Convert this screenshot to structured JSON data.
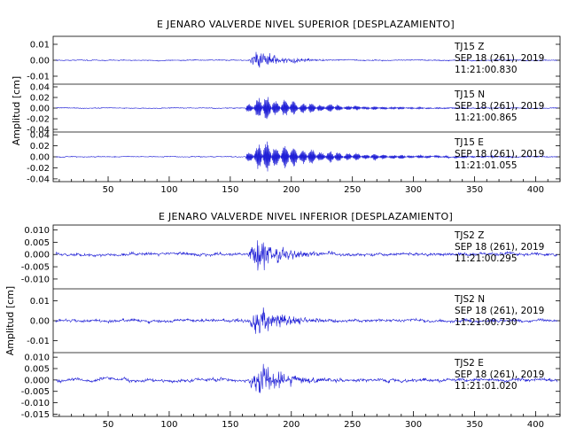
{
  "chart_data": [
    {
      "type": "line",
      "title": "E JENARO VALVERDE NIVEL SUPERIOR [DESPLAZAMIENTO]",
      "ylabel": "Amplitud [cm]",
      "xlim": [
        5,
        420
      ],
      "xticks": [
        "50",
        "100",
        "150",
        "200",
        "250",
        "300",
        "350",
        "400"
      ],
      "panels": [
        {
          "name": "TJ15 Z",
          "station": "TJ15",
          "component": "Z",
          "date": "SEP 18 (261), 2019",
          "time": "11:21:00.830",
          "ylim": [
            -0.015,
            0.015
          ],
          "yticks": [
            "0.01",
            "0.00",
            "-0.01"
          ],
          "onset": 163,
          "peak_t": 171,
          "peak_amp": 0.013,
          "decay": 18,
          "osc": [
            4.5,
            0
          ],
          "noise": 0.0004
        },
        {
          "name": "TJ15 N",
          "station": "TJ15",
          "component": "N",
          "date": "SEP 18 (261), 2019",
          "time": "11:21:00.865",
          "ylim": [
            -0.045,
            0.045
          ],
          "yticks": [
            "0.04",
            "0.02",
            "0.00",
            "-0.02",
            "-0.04"
          ],
          "onset": 163,
          "peak_t": 171,
          "peak_amp": 0.03,
          "decay": 45,
          "osc": [
            2.5,
            0.022
          ],
          "noise": 0.001
        },
        {
          "name": "TJ15 E",
          "station": "TJ15",
          "component": "E",
          "date": "SEP 18 (261), 2019",
          "time": "11:21:01.055",
          "ylim": [
            -0.045,
            0.045
          ],
          "yticks": [
            "0.04",
            "0.02",
            "0.00",
            "-0.02",
            "-0.04"
          ],
          "onset": 163,
          "peak_t": 171,
          "peak_amp": 0.035,
          "decay": 55,
          "osc": [
            2.2,
            0.022
          ],
          "noise": 0.001
        }
      ],
      "xlabel": ""
    },
    {
      "type": "line",
      "title": "E JENARO VALVERDE NIVEL INFERIOR [DESPLAZAMIENTO]",
      "ylabel": "Amplitud [cm]",
      "xlim": [
        5,
        420
      ],
      "xticks": [
        "50",
        "100",
        "150",
        "200",
        "250",
        "300",
        "350",
        "400"
      ],
      "panels": [
        {
          "name": "TJS2 Z",
          "station": "TJS2",
          "component": "Z",
          "date": "SEP 18 (261), 2019",
          "time": "11:21:00.295",
          "ylim": [
            -0.014,
            0.012
          ],
          "yticks": [
            "0.010",
            "0.005",
            "0.000",
            "-0.005",
            "-0.010"
          ],
          "onset": 163,
          "peak_t": 171,
          "peak_amp": 0.012,
          "decay": 22,
          "osc": [
            4.5,
            0
          ],
          "noise": 0.0008
        },
        {
          "name": "TJS2 N",
          "station": "TJS2",
          "component": "N",
          "date": "SEP 18 (261), 2019",
          "time": "11:21:00.730",
          "ylim": [
            -0.016,
            0.016
          ],
          "yticks": [
            "0.01",
            "0.00",
            "-0.01"
          ],
          "onset": 163,
          "peak_t": 171,
          "peak_amp": 0.015,
          "decay": 20,
          "osc": [
            4.5,
            0
          ],
          "noise": 0.0009
        },
        {
          "name": "TJS2 E",
          "station": "TJS2",
          "component": "E",
          "date": "SEP 18 (261), 2019",
          "time": "11:21:01.020",
          "ylim": [
            -0.016,
            0.012
          ],
          "yticks": [
            "0.010",
            "0.005",
            "0.000",
            "-0.005",
            "-0.010",
            "-0.015"
          ],
          "onset": 163,
          "peak_t": 171,
          "peak_amp": 0.014,
          "decay": 20,
          "osc": [
            4.5,
            0
          ],
          "noise": 0.0009
        }
      ],
      "xlabel": ""
    }
  ],
  "colors": {
    "trace": "#1f1fd6",
    "axes": "#000000"
  }
}
